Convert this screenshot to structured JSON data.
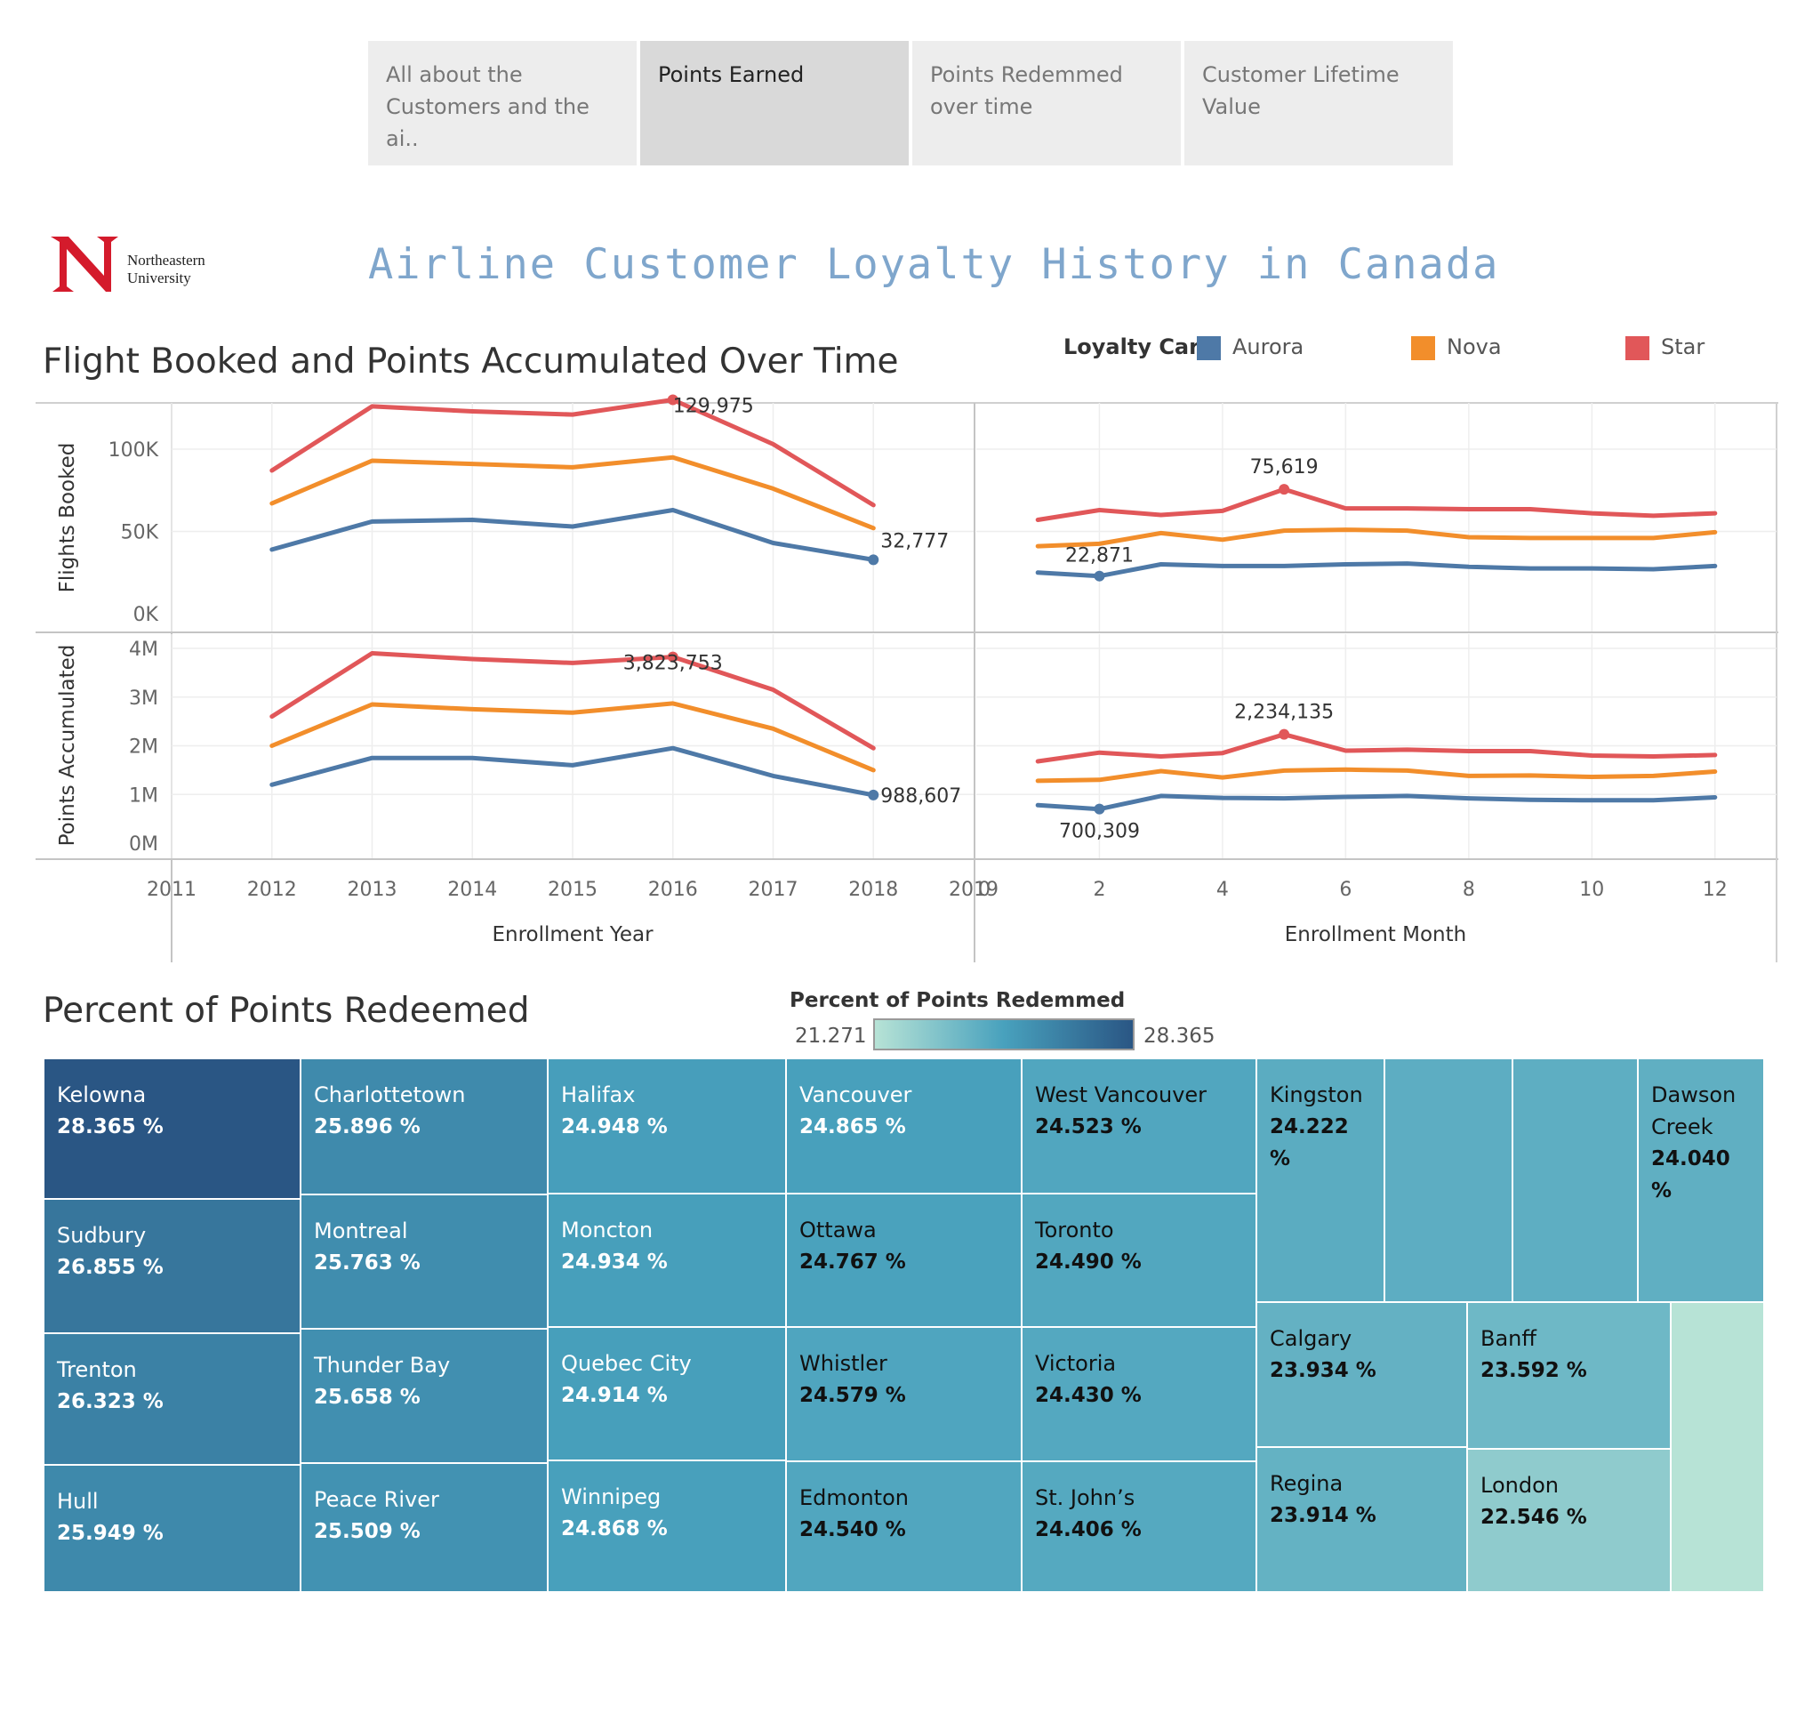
{
  "tabs": [
    {
      "label": "All about the Customers and the ai..",
      "active": false
    },
    {
      "label": "Points Earned",
      "active": true
    },
    {
      "label": "Points Redemmed over time",
      "active": false
    },
    {
      "label": "Customer Lifetime Value",
      "active": false
    }
  ],
  "logo": {
    "line1": "Northeastern",
    "line2": "University",
    "color": "#d41b2c"
  },
  "main_title": "Airline Customer Loyalty History in Canada",
  "chart1_title": "Flight Booked and Points Accumulated Over Time",
  "legend": {
    "title": "Loyalty Card",
    "items": [
      {
        "name": "Aurora",
        "color": "#4e79a7"
      },
      {
        "name": "Nova",
        "color": "#f28e2b"
      },
      {
        "name": "Star",
        "color": "#e15759"
      }
    ]
  },
  "chart2_title": "Percent of Points Redeemed",
  "color_legend": {
    "title": "Percent of Points Redemmed",
    "min": "21.271",
    "max": "28.365"
  },
  "chart_data": [
    {
      "type": "line",
      "ylabel": "Flights Booked",
      "xlabel": "Enrollment Year",
      "x": [
        2012,
        2013,
        2014,
        2015,
        2016,
        2017,
        2018
      ],
      "xlim": [
        2011,
        2019
      ],
      "x_ticks": [
        "2011",
        "2012",
        "2013",
        "2014",
        "2015",
        "2016",
        "2017",
        "2018",
        "2019"
      ],
      "ylim": [
        0,
        135000
      ],
      "y_ticks": [
        {
          "v": 0,
          "label": "0K"
        },
        {
          "v": 50000,
          "label": "50K"
        },
        {
          "v": 100000,
          "label": "100K"
        }
      ],
      "series": [
        {
          "name": "Aurora",
          "values": [
            39000,
            56000,
            57000,
            53000,
            63000,
            43000,
            32777
          ]
        },
        {
          "name": "Nova",
          "values": [
            67000,
            93000,
            91000,
            89000,
            95000,
            76000,
            52000
          ]
        },
        {
          "name": "Star",
          "values": [
            87000,
            126000,
            123000,
            121000,
            129975,
            103000,
            66000
          ]
        }
      ],
      "annotations": [
        {
          "series": "Star",
          "x": 2016,
          "label": "129,975"
        },
        {
          "series": "Aurora",
          "x": 2018,
          "label": "32,777"
        }
      ]
    },
    {
      "type": "line",
      "ylabel": "Flights Booked",
      "xlabel": "Enrollment Month",
      "x": [
        1,
        2,
        3,
        4,
        5,
        6,
        7,
        8,
        9,
        10,
        11,
        12
      ],
      "xlim": [
        0,
        13
      ],
      "x_ticks": [
        "0",
        "2",
        "4",
        "6",
        "8",
        "10",
        "12"
      ],
      "ylim": [
        0,
        135000
      ],
      "series": [
        {
          "name": "Aurora",
          "values": [
            25000,
            22871,
            30000,
            29000,
            29000,
            30000,
            30500,
            28500,
            27500,
            27500,
            27000,
            29000
          ]
        },
        {
          "name": "Nova",
          "values": [
            41000,
            42500,
            49000,
            45000,
            50500,
            51000,
            50500,
            46500,
            46000,
            46000,
            46000,
            49500
          ]
        },
        {
          "name": "Star",
          "values": [
            57000,
            63000,
            60000,
            62500,
            75619,
            64000,
            64000,
            63500,
            63500,
            61000,
            59500,
            61000
          ]
        }
      ],
      "annotations": [
        {
          "series": "Star",
          "x": 5,
          "label": "75,619"
        },
        {
          "series": "Aurora",
          "x": 2,
          "label": "22,871"
        }
      ]
    },
    {
      "type": "line",
      "ylabel": "Points Accumulated",
      "xlabel": "Enrollment Year",
      "x": [
        2012,
        2013,
        2014,
        2015,
        2016,
        2017,
        2018
      ],
      "xlim": [
        2011,
        2019
      ],
      "ylim": [
        0,
        4000000
      ],
      "y_ticks": [
        {
          "v": 0,
          "label": "0M"
        },
        {
          "v": 1000000,
          "label": "1M"
        },
        {
          "v": 2000000,
          "label": "2M"
        },
        {
          "v": 3000000,
          "label": "3M"
        },
        {
          "v": 4000000,
          "label": "4M"
        }
      ],
      "series": [
        {
          "name": "Aurora",
          "values": [
            1200000,
            1750000,
            1750000,
            1600000,
            1950000,
            1380000,
            988607
          ]
        },
        {
          "name": "Nova",
          "values": [
            2000000,
            2850000,
            2750000,
            2680000,
            2870000,
            2350000,
            1500000
          ]
        },
        {
          "name": "Star",
          "values": [
            2600000,
            3900000,
            3780000,
            3700000,
            3823753,
            3150000,
            1950000
          ]
        }
      ],
      "annotations": [
        {
          "series": "Star",
          "x": 2016,
          "label": "3,823,753"
        },
        {
          "series": "Aurora",
          "x": 2018,
          "label": "988,607"
        }
      ]
    },
    {
      "type": "line",
      "ylabel": "Points Accumulated",
      "xlabel": "Enrollment Month",
      "x": [
        1,
        2,
        3,
        4,
        5,
        6,
        7,
        8,
        9,
        10,
        11,
        12
      ],
      "xlim": [
        0,
        13
      ],
      "ylim": [
        0,
        4000000
      ],
      "series": [
        {
          "name": "Aurora",
          "values": [
            780000,
            700309,
            970000,
            930000,
            920000,
            950000,
            970000,
            920000,
            890000,
            880000,
            880000,
            940000
          ]
        },
        {
          "name": "Nova",
          "values": [
            1280000,
            1300000,
            1480000,
            1350000,
            1490000,
            1510000,
            1490000,
            1380000,
            1390000,
            1360000,
            1380000,
            1470000
          ]
        },
        {
          "name": "Star",
          "values": [
            1680000,
            1860000,
            1780000,
            1850000,
            2234135,
            1900000,
            1920000,
            1890000,
            1890000,
            1800000,
            1780000,
            1810000
          ]
        }
      ],
      "annotations": [
        {
          "series": "Star",
          "x": 5,
          "label": "2,234,135"
        },
        {
          "series": "Aurora",
          "x": 2,
          "label": "700,309"
        }
      ]
    },
    {
      "type": "treemap",
      "value_range": [
        21.271,
        28.365
      ],
      "cells": [
        {
          "name": "Kelowna",
          "value": 28.365,
          "label": "28.365 %"
        },
        {
          "name": "Sudbury",
          "value": 26.855,
          "label": "26.855 %"
        },
        {
          "name": "Trenton",
          "value": 26.323,
          "label": "26.323 %"
        },
        {
          "name": "Hull",
          "value": 25.949,
          "label": "25.949 %"
        },
        {
          "name": "Charlottetown",
          "value": 25.896,
          "label": "25.896 %"
        },
        {
          "name": "Montreal",
          "value": 25.763,
          "label": "25.763 %"
        },
        {
          "name": "Thunder Bay",
          "value": 25.658,
          "label": "25.658 %"
        },
        {
          "name": "Peace River",
          "value": 25.509,
          "label": "25.509 %"
        },
        {
          "name": "Halifax",
          "value": 24.948,
          "label": "24.948 %"
        },
        {
          "name": "Moncton",
          "value": 24.934,
          "label": "24.934 %"
        },
        {
          "name": "Quebec City",
          "value": 24.914,
          "label": "24.914 %"
        },
        {
          "name": "Winnipeg",
          "value": 24.868,
          "label": "24.868 %"
        },
        {
          "name": "Vancouver",
          "value": 24.865,
          "label": "24.865 %"
        },
        {
          "name": "Ottawa",
          "value": 24.767,
          "label": "24.767 %"
        },
        {
          "name": "Whistler",
          "value": 24.579,
          "label": "24.579 %"
        },
        {
          "name": "Edmonton",
          "value": 24.54,
          "label": "24.540 %"
        },
        {
          "name": "West Vancouver",
          "value": 24.523,
          "label": "24.523 %"
        },
        {
          "name": "Toronto",
          "value": 24.49,
          "label": "24.490 %"
        },
        {
          "name": "Victoria",
          "value": 24.43,
          "label": "24.430 %"
        },
        {
          "name": "St. John’s",
          "value": 24.406,
          "label": "24.406 %"
        },
        {
          "name": "Kingston",
          "value": 24.222,
          "label": "24.222 %"
        },
        {
          "name": "",
          "value": 24.15,
          "label": ""
        },
        {
          "name": "",
          "value": 24.1,
          "label": ""
        },
        {
          "name": "Dawson Creek",
          "value": 24.04,
          "label": "24.040 %"
        },
        {
          "name": "Calgary",
          "value": 23.934,
          "label": "23.934 %"
        },
        {
          "name": "Regina",
          "value": 23.914,
          "label": "23.914 %"
        },
        {
          "name": "Banff",
          "value": 23.592,
          "label": "23.592 %"
        },
        {
          "name": "London",
          "value": 22.546,
          "label": "22.546 %"
        },
        {
          "name": "",
          "value": 21.271,
          "label": ""
        }
      ]
    }
  ]
}
